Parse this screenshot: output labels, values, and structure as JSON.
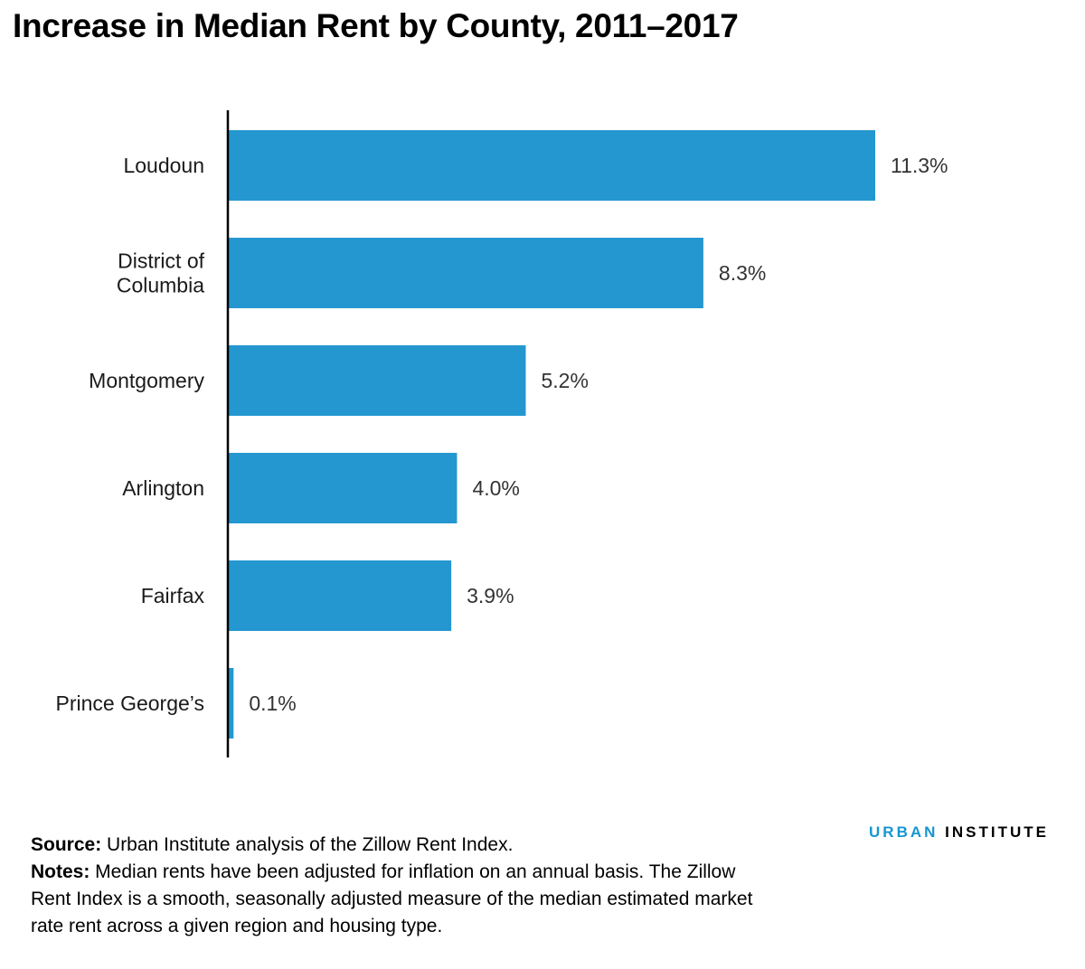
{
  "title": "Increase in Median Rent by County, 2011–2017",
  "colors": {
    "bar": "#2497d0",
    "axis": "#000000",
    "brand_accent": "#1696d2",
    "text": "#000000"
  },
  "chart_data": {
    "type": "bar",
    "orientation": "horizontal",
    "title": "Increase in Median Rent by County, 2011–2017",
    "categories": [
      [
        "Loudoun"
      ],
      [
        "District of",
        "Columbia"
      ],
      [
        "Montgomery"
      ],
      [
        "Arlington"
      ],
      [
        "Fairfax"
      ],
      [
        "Prince George’s"
      ]
    ],
    "values": [
      11.3,
      8.3,
      5.2,
      4.0,
      3.9,
      0.1
    ],
    "value_labels": [
      "11.3%",
      "8.3%",
      "5.2%",
      "4.0%",
      "3.9%",
      "0.1%"
    ],
    "unit": "%",
    "xlim": [
      0,
      11.3
    ],
    "grid": false,
    "legend": "none"
  },
  "footnote": {
    "source_label": "Source:",
    "source_text": " Urban Institute analysis of the Zillow Rent Index.",
    "notes_label": "Notes:",
    "notes_text": " Median rents have been adjusted for inflation on an annual basis. The Zillow Rent Index is a smooth, seasonally adjusted measure of the median estimated market rate rent across a given region and housing type."
  },
  "brand": {
    "part1": "URBAN",
    "part2": "INSTITUTE"
  }
}
